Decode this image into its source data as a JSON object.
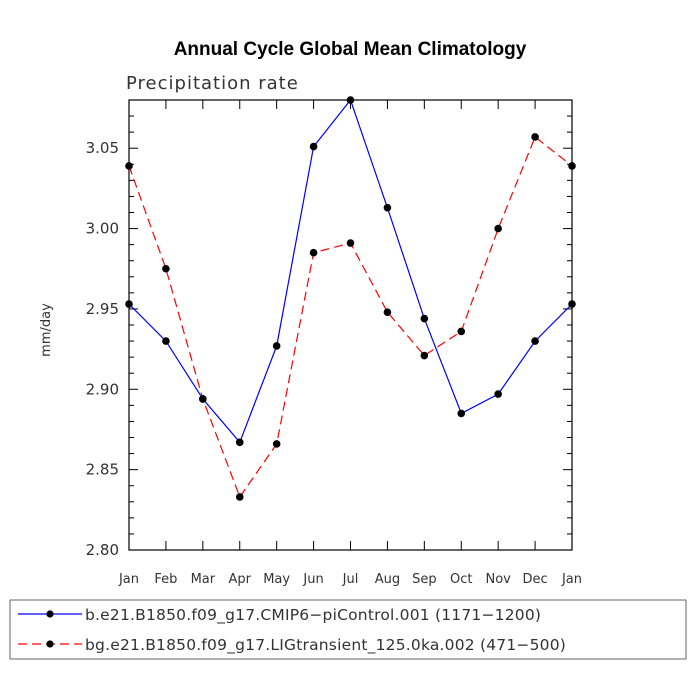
{
  "chart_data": {
    "type": "line",
    "title": "Annual Cycle Global Mean Climatology",
    "subtitle": "Precipitation rate",
    "xlabel": "",
    "ylabel": "mm/day",
    "categories": [
      "Jan",
      "Feb",
      "Mar",
      "Apr",
      "May",
      "Jun",
      "Jul",
      "Aug",
      "Sep",
      "Oct",
      "Nov",
      "Dec",
      "Jan"
    ],
    "ylim": [
      2.8,
      3.08
    ],
    "yticks": [
      "2.80",
      "2.85",
      "2.90",
      "2.95",
      "3.00",
      "3.05"
    ],
    "grid": false,
    "legend_position": "bottom",
    "series": [
      {
        "name": "b.e21.B1850.f09_g17.CMIP6−piControl.001 (1171−1200)",
        "color": "#0000ff",
        "line_style": "solid",
        "values": [
          2.953,
          2.93,
          2.894,
          2.867,
          2.927,
          3.051,
          3.08,
          3.013,
          2.944,
          2.885,
          2.897,
          2.93,
          2.953
        ]
      },
      {
        "name": "bg.e21.B1850.f09_g17.LIGtransient_125.0ka.002 (471−500)",
        "color": "#ff0000",
        "line_style": "dashed",
        "values": [
          3.039,
          2.975,
          2.894,
          2.833,
          2.866,
          2.985,
          2.991,
          2.948,
          2.921,
          2.936,
          3.0,
          3.057,
          3.039
        ]
      }
    ]
  }
}
